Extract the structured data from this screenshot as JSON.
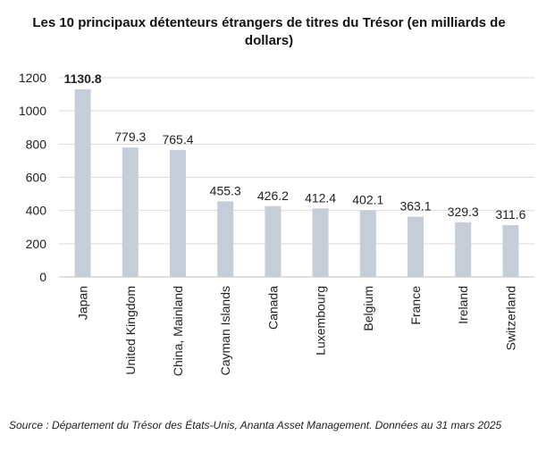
{
  "title": "Les 10 principaux détenteurs étrangers de titres du Trésor (en milliards de dollars)",
  "source": "Source : Département du Trésor des États-Unis, Ananta Asset Management. Données au 31 mars 2025",
  "colors": {
    "bar": "#c5ced8",
    "grid": "#d9d9d9",
    "axis": "#bfbfbf",
    "text": "#222222"
  },
  "chart_data": {
    "type": "bar",
    "title": "Les 10 principaux détenteurs étrangers de titres du Trésor (en milliards de dollars)",
    "categories": [
      "Japan",
      "United Kingdom",
      "China, Mainland",
      "Cayman Islands",
      "Canada",
      "Luxembourg",
      "Belgium",
      "France",
      "Ireland",
      "Switzerland"
    ],
    "values": [
      1130.8,
      779.3,
      765.4,
      455.3,
      426.2,
      412.4,
      402.1,
      363.1,
      329.3,
      311.6
    ],
    "data_labels": [
      "1130.8",
      "779.3",
      "765.4",
      "455.3",
      "426.2",
      "412.4",
      "402.1",
      "363.1",
      "329.3",
      "311.6"
    ],
    "yticks": [
      0,
      200,
      400,
      600,
      800,
      1000,
      1200
    ],
    "ylim": [
      0,
      1200
    ],
    "xlabel": "",
    "ylabel": "",
    "grid": true,
    "legend": "none"
  }
}
